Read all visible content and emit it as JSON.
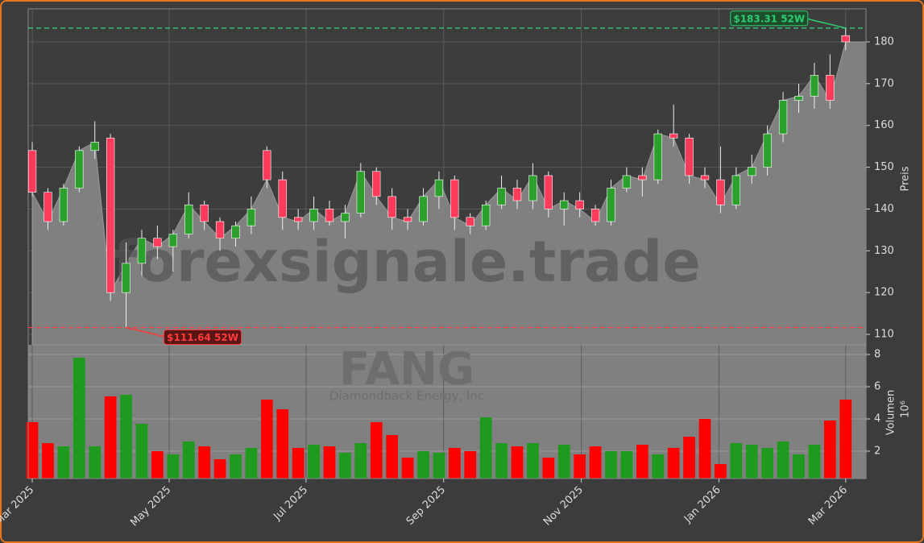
{
  "chart_data": {
    "type": "candlestick",
    "watermark": "forexsignale.trade",
    "symbol": "FANG",
    "company": "Diamondback Energy, Inc",
    "ylabel": "Preis",
    "volume_label": "Volumen",
    "volume_unit": "10⁶",
    "up_color": "#2ca02c",
    "down_color": "#ff3b5c",
    "volume_up_color": "#1f9a1f",
    "volume_down_color": "#ff0000",
    "area_color": "#808080",
    "grid": true,
    "categories": [
      null,
      null,
      null,
      null,
      null,
      null,
      null,
      null,
      null,
      null,
      null,
      null,
      null,
      null,
      null,
      null,
      null,
      null,
      null,
      null,
      null,
      null,
      null,
      null,
      null,
      null,
      null,
      null,
      null,
      null,
      null,
      null,
      null,
      null,
      null,
      null,
      null,
      null,
      null,
      null,
      null,
      null,
      null,
      null,
      null,
      null,
      null,
      null,
      null,
      null,
      null,
      null,
      null
    ],
    "open": [
      154,
      144,
      137,
      145,
      154,
      157,
      120,
      127,
      133,
      131,
      134,
      141,
      137,
      133,
      136,
      154,
      147,
      138,
      137,
      140,
      137,
      139,
      149,
      143,
      138,
      137,
      143,
      147,
      138,
      136,
      141,
      145,
      142,
      148,
      140,
      142,
      140,
      137,
      145,
      148,
      147,
      158,
      157,
      148,
      147,
      141,
      148,
      150,
      158,
      166,
      167,
      172,
      181.5
    ],
    "high": [
      156,
      145,
      146,
      155,
      161,
      158,
      132,
      135,
      136,
      135,
      144,
      142,
      138,
      137,
      143,
      155,
      149,
      140,
      143,
      142,
      141,
      151,
      150,
      145,
      140,
      145,
      149,
      148,
      139,
      142,
      148,
      147,
      151,
      149,
      144,
      144,
      141,
      147,
      150,
      150,
      159,
      165,
      158,
      150,
      155,
      150,
      153,
      160,
      168,
      170,
      175,
      177,
      183.31
    ],
    "low": [
      143,
      135,
      136,
      144,
      152,
      118,
      111.64,
      124,
      128,
      125,
      133,
      135,
      130,
      131,
      134,
      145,
      135,
      135,
      135,
      136,
      133,
      138,
      141,
      135,
      135,
      136,
      140,
      135,
      134,
      135,
      140,
      140,
      140,
      138,
      136,
      138,
      136,
      136,
      144,
      143,
      146,
      155,
      146,
      145,
      139,
      140,
      146,
      148,
      156,
      163,
      164,
      164,
      178
    ],
    "close": [
      144,
      137,
      145,
      154,
      156,
      120,
      127,
      133,
      131,
      134,
      141,
      137,
      133,
      136,
      140,
      147,
      138,
      137,
      140,
      137,
      139,
      149,
      143,
      138,
      137,
      143,
      147,
      138,
      136,
      141,
      145,
      142,
      148,
      140,
      142,
      140,
      137,
      145,
      148,
      147,
      158,
      157,
      148,
      147,
      141,
      148,
      150,
      158,
      166,
      167,
      172,
      166,
      180
    ],
    "volume": [
      3.8,
      2.5,
      2.3,
      7.8,
      2.3,
      5.4,
      5.5,
      3.7,
      2.0,
      1.8,
      2.6,
      2.3,
      1.5,
      1.8,
      2.2,
      5.2,
      4.6,
      2.2,
      2.4,
      2.3,
      1.9,
      2.5,
      3.8,
      3.0,
      1.6,
      2.0,
      1.9,
      2.2,
      2.0,
      4.1,
      2.5,
      2.3,
      2.5,
      1.6,
      2.4,
      1.8,
      2.3,
      2.0,
      2.0,
      2.4,
      1.8,
      2.2,
      2.9,
      4.0,
      1.2,
      2.5,
      2.4,
      2.2,
      2.6,
      1.8,
      2.4,
      3.9,
      5.2
    ],
    "xlim": [
      -0.26,
      53.3
    ],
    "xticks": [
      {
        "value": 0,
        "label": "Mar 2025"
      },
      {
        "value": 8.75,
        "label": "May 2025"
      },
      {
        "value": 17.5,
        "label": "Jul 2025"
      },
      {
        "value": 26.3,
        "label": "Sep 2025"
      },
      {
        "value": 35.1,
        "label": "Nov 2025"
      },
      {
        "value": 43.9,
        "label": "Jan 2026"
      },
      {
        "value": 52,
        "label": "Mar 2026"
      }
    ],
    "ylim": [
      107.5,
      187.9
    ],
    "yticks": [
      110,
      120,
      130,
      140,
      150,
      160,
      170,
      180
    ],
    "volume_ylim": [
      0.3,
      8.6
    ],
    "volume_yticks": [
      2,
      4,
      6,
      8
    ],
    "annotations": [
      {
        "label": "$183.31 52W",
        "value": 183.31,
        "color": "#2ecc71"
      },
      {
        "label": "$111.64 52W",
        "value": 111.64,
        "color": "#ff3b3b"
      }
    ]
  }
}
